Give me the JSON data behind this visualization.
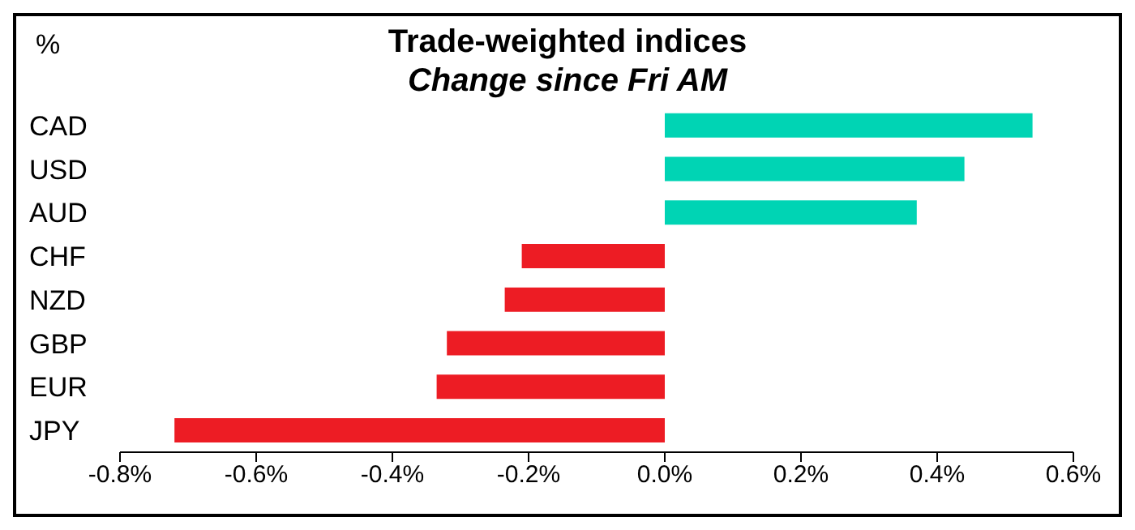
{
  "chart_data": {
    "type": "bar",
    "orientation": "horizontal",
    "title": "Trade-weighted indices",
    "subtitle": "Change since Fri AM",
    "ylabel": "%",
    "categories": [
      "CAD",
      "USD",
      "AUD",
      "CHF",
      "NZD",
      "GBP",
      "EUR",
      "JPY"
    ],
    "values": [
      0.54,
      0.44,
      0.37,
      -0.21,
      -0.235,
      -0.32,
      -0.335,
      -0.72
    ],
    "colors": [
      "#00d4b4",
      "#00d4b4",
      "#00d4b4",
      "#ed1c24",
      "#ed1c24",
      "#ed1c24",
      "#ed1c24",
      "#ed1c24"
    ],
    "xlim": [
      -0.8,
      0.6
    ],
    "xticks": [
      {
        "value": -0.8,
        "label": "-0.8%"
      },
      {
        "value": -0.6,
        "label": "-0.6%"
      },
      {
        "value": -0.4,
        "label": "-0.4%"
      },
      {
        "value": -0.2,
        "label": "-0.2%"
      },
      {
        "value": 0,
        "label": "0.0%"
      },
      {
        "value": 0.2,
        "label": "0.2%"
      },
      {
        "value": 0.4,
        "label": "0.4%"
      },
      {
        "value": 0.6,
        "label": "0.6%"
      }
    ],
    "grid": false,
    "legend": false
  }
}
